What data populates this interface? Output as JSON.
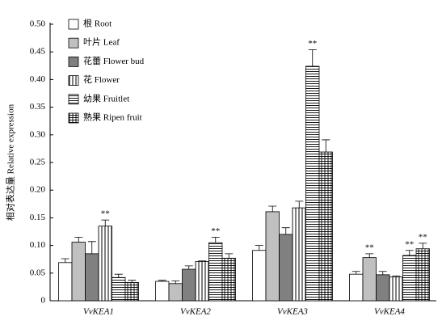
{
  "chart_data": {
    "type": "bar",
    "y_label": "相对表达量 Relative expression",
    "categories": [
      "VvKEA1",
      "VvKEA2",
      "VvKEA3",
      "VvKEA4"
    ],
    "series": [
      {
        "name": "根 Root",
        "color": "#ffffff",
        "pattern": "solid",
        "values": [
          0.069,
          0.035,
          0.091,
          0.048
        ],
        "errors": [
          0.007,
          0.002,
          0.009,
          0.005
        ],
        "significance": [
          null,
          null,
          null,
          null
        ]
      },
      {
        "name": "叶片 Leaf",
        "color": "#c0c0c0",
        "pattern": "solid",
        "values": [
          0.106,
          0.031,
          0.161,
          0.078
        ],
        "errors": [
          0.009,
          0.005,
          0.01,
          0.007
        ],
        "significance": [
          null,
          null,
          null,
          "**"
        ]
      },
      {
        "name": "花蕾 Flower bud",
        "color": "#808080",
        "pattern": "solid",
        "values": [
          0.085,
          0.057,
          0.12,
          0.047
        ],
        "errors": [
          0.022,
          0.006,
          0.012,
          0.006
        ],
        "significance": [
          null,
          null,
          null,
          null
        ]
      },
      {
        "name": "花 Flower",
        "color": "#ffffff",
        "pattern": "vertical",
        "values": [
          0.135,
          0.071,
          0.168,
          0.043
        ],
        "errors": [
          0.011,
          0.001,
          0.012,
          0.002
        ],
        "significance": [
          "**",
          null,
          null,
          null
        ]
      },
      {
        "name": "幼果 Fruitlet",
        "color": "#ffffff",
        "pattern": "horizontal",
        "values": [
          0.042,
          0.105,
          0.424,
          0.082
        ],
        "errors": [
          0.006,
          0.01,
          0.03,
          0.009
        ],
        "significance": [
          null,
          "**",
          "**",
          "**"
        ]
      },
      {
        "name": "熟果 Ripen fruit",
        "color": "#ffffff",
        "pattern": "grid",
        "values": [
          0.033,
          0.077,
          0.269,
          0.094
        ],
        "errors": [
          0.004,
          0.008,
          0.022,
          0.01
        ],
        "significance": [
          null,
          null,
          null,
          "**"
        ]
      }
    ],
    "ylim": [
      0,
      0.5
    ],
    "yticks": [
      0,
      0.05,
      {
        "value": 0.1,
        "label": "0.10"
      },
      0.15,
      {
        "value": 0.2,
        "label": "0.20"
      },
      0.25,
      {
        "value": 0.3,
        "label": "0.30"
      },
      0.35,
      {
        "value": 0.4,
        "label": "0.40"
      },
      0.45,
      {
        "value": 0.5,
        "label": "0.50"
      }
    ],
    "grid": false
  }
}
